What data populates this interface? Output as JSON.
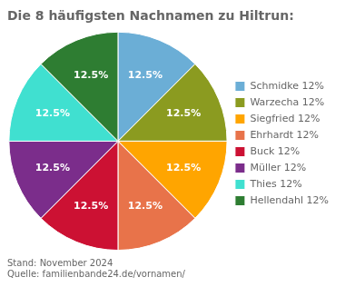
{
  "chart_data": {
    "type": "pie",
    "title": "Die 8 häufigsten Nachnamen zu Hiltrun:",
    "categories": [
      "Schmidke 12%",
      "Warzecha 12%",
      "Siegfried 12%",
      "Ehrhardt 12%",
      "Buck 12%",
      "Müller 12%",
      "Thies 12%",
      "Hellendahl 12%"
    ],
    "values": [
      12.5,
      12.5,
      12.5,
      12.5,
      12.5,
      12.5,
      12.5,
      12.5
    ],
    "value_labels": [
      "12.5%",
      "12.5%",
      "12.5%",
      "12.5%",
      "12.5%",
      "12.5%",
      "12.5%",
      "12.5%"
    ],
    "data_labels": true,
    "colors": [
      "#6baed6",
      "#8B9B20",
      "#FFA500",
      "#E8734A",
      "#CC1133",
      "#7B2D8B",
      "#40E0D0",
      "#2E7D32"
    ],
    "legend": "right",
    "annotations": [
      "Stand: November 2024",
      "Quelle: familienbande24.de/vornamen/"
    ]
  }
}
